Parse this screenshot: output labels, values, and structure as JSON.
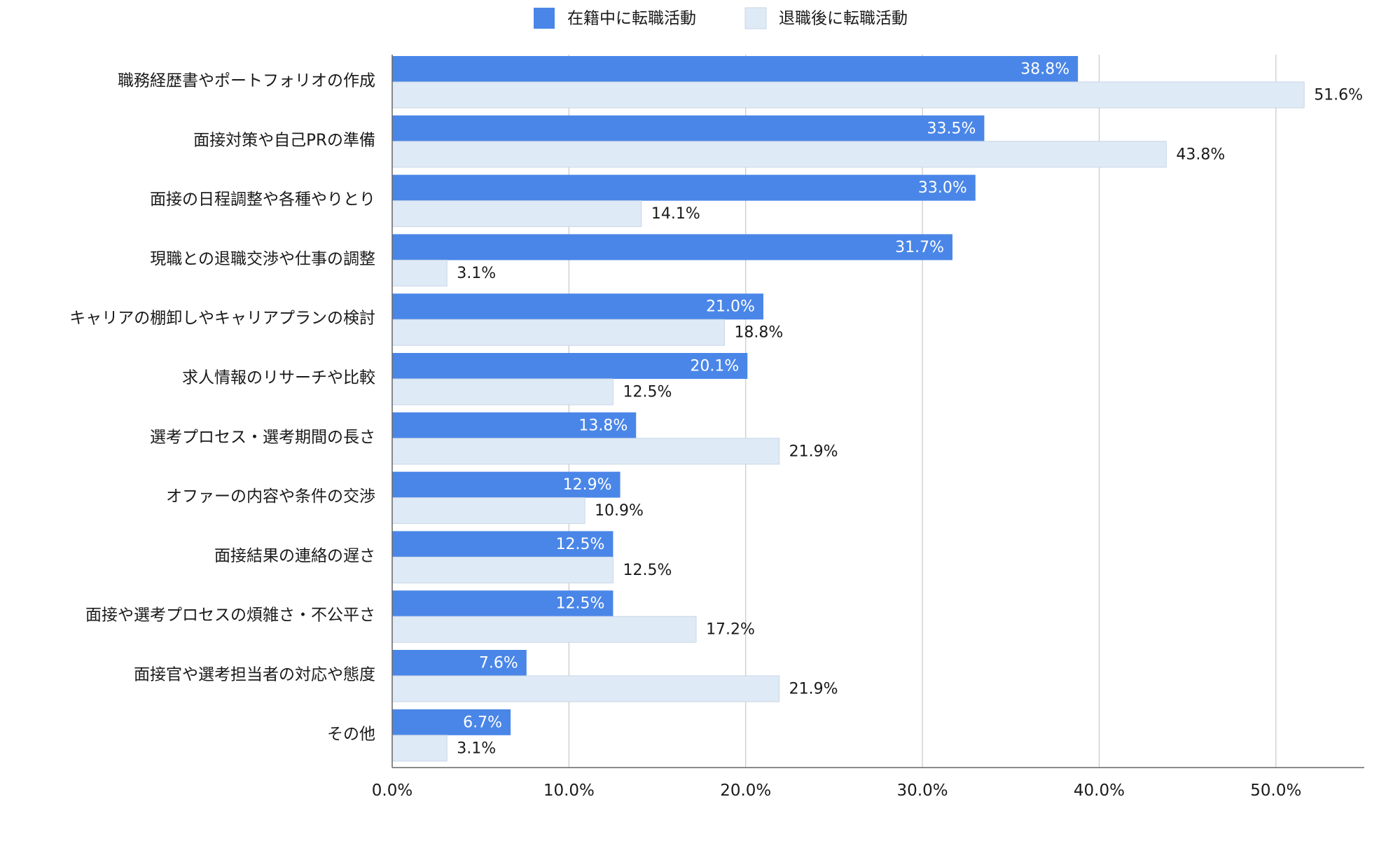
{
  "chart_data": {
    "type": "bar",
    "orientation": "horizontal",
    "categories": [
      "職務経歴書やポートフォリオの作成",
      "面接対策や自己PRの準備",
      "面接の日程調整や各種やりとり",
      "現職との退職交渉や仕事の調整",
      "キャリアの棚卸しやキャリアプランの検討",
      "求人情報のリサーチや比較",
      "選考プロセス・選考期間の長さ",
      "オファーの内容や条件の交渉",
      "面接結果の連絡の遅さ",
      "面接や選考プロセスの煩雑さ・不公平さ",
      "面接官や選考担当者の対応や態度",
      "その他"
    ],
    "series": [
      {
        "name": "在籍中に転職活動",
        "color": "#4a86e8",
        "values": [
          38.8,
          33.5,
          33.0,
          31.7,
          21.0,
          20.1,
          13.8,
          12.9,
          12.5,
          12.5,
          7.6,
          6.7
        ],
        "labels": [
          "38.8%",
          "33.5%",
          "33.0%",
          "31.7%",
          "21.0%",
          "20.1%",
          "13.8%",
          "12.9%",
          "12.5%",
          "12.5%",
          "7.6%",
          "6.7%"
        ]
      },
      {
        "name": "退職後に転職活動",
        "color": "#deeaf6",
        "values": [
          51.6,
          43.8,
          14.1,
          3.1,
          18.8,
          12.5,
          21.9,
          10.9,
          12.5,
          17.2,
          21.9,
          3.1
        ],
        "labels": [
          "51.6%",
          "43.8%",
          "14.1%",
          "3.1%",
          "18.8%",
          "12.5%",
          "21.9%",
          "10.9%",
          "12.5%",
          "17.2%",
          "21.9%",
          "3.1%"
        ]
      }
    ],
    "xlim": [
      0,
      55
    ],
    "x_ticks": [
      0,
      10,
      20,
      30,
      40,
      50
    ],
    "x_tick_labels": [
      "0.0%",
      "10.0%",
      "20.0%",
      "30.0%",
      "40.0%",
      "50.0%"
    ],
    "grid": true,
    "legend_position": "top-center",
    "title": "",
    "xlabel": "",
    "ylabel": ""
  }
}
